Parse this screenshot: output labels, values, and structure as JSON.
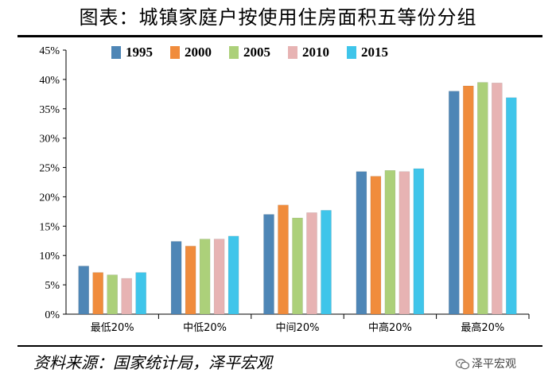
{
  "title": "图表：城镇家庭户按使用住房面积五等份分组",
  "source": "资料来源：国家统计局，泽平宏观",
  "watermark": "泽平宏观",
  "chart_data": {
    "type": "bar",
    "categories": [
      "最低20%",
      "中低20%",
      "中间20%",
      "中高20%",
      "最高20%"
    ],
    "series": [
      {
        "name": "1995",
        "color": "#4e86b6",
        "values": [
          8.2,
          12.4,
          17.0,
          24.3,
          38.0
        ]
      },
      {
        "name": "2000",
        "color": "#f08c3c",
        "values": [
          7.1,
          11.6,
          18.6,
          23.5,
          38.9
        ]
      },
      {
        "name": "2005",
        "color": "#acd07a",
        "values": [
          6.7,
          12.8,
          16.4,
          24.5,
          39.5
        ]
      },
      {
        "name": "2010",
        "color": "#e7b3b3",
        "values": [
          6.1,
          12.8,
          17.3,
          24.3,
          39.4
        ]
      },
      {
        "name": "2015",
        "color": "#3fc5ea",
        "values": [
          7.1,
          13.3,
          17.7,
          24.8,
          36.9
        ]
      }
    ],
    "ylim": [
      0,
      45
    ],
    "yticks": [
      "0%",
      "5%",
      "10%",
      "15%",
      "20%",
      "25%",
      "30%",
      "35%",
      "40%",
      "45%"
    ],
    "legend_position": "top",
    "grid": false
  }
}
